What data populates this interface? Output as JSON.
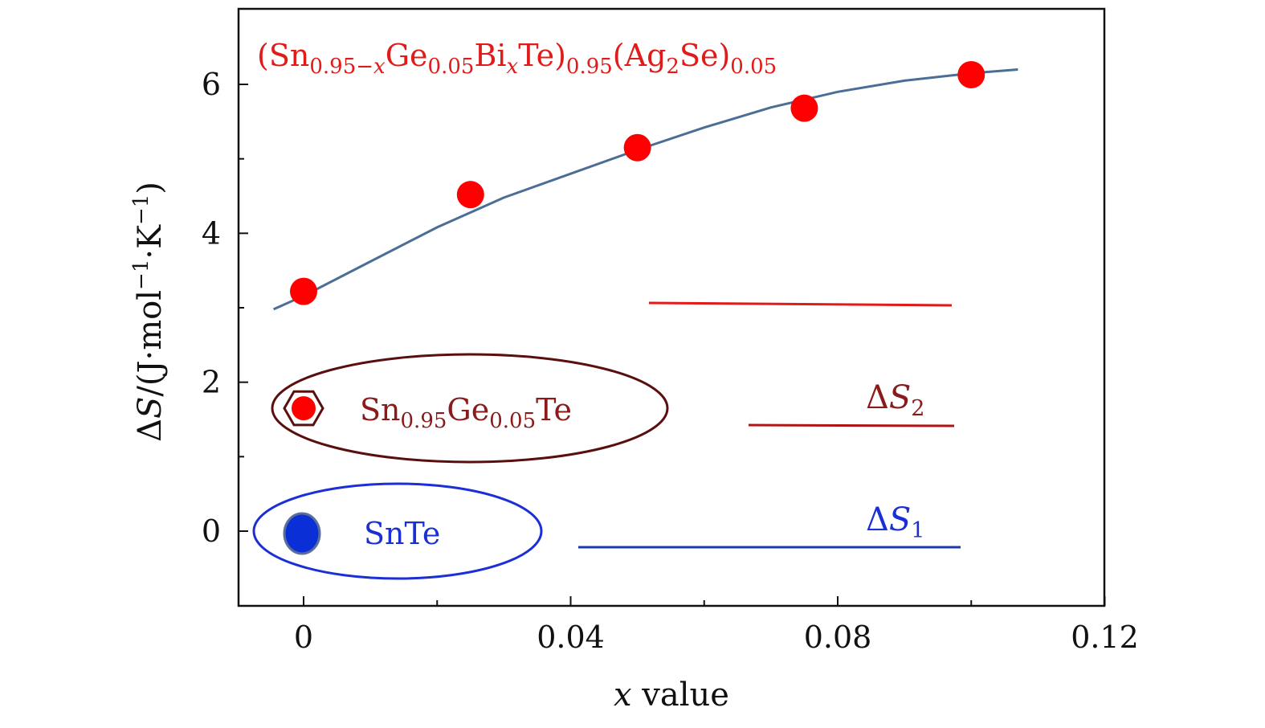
{
  "chart_data": {
    "type": "scatter",
    "title": "",
    "xlabel": {
      "italic": "x",
      "rest": " value"
    },
    "ylabel": {
      "delta": "Δ",
      "S": "S",
      "unit": "/(J·mol",
      "exp1": "−1",
      "mid": "·K",
      "exp2": "−1",
      "close": ")"
    },
    "xlim": [
      -0.005,
      0.12
    ],
    "ylim": [
      -1,
      7
    ],
    "x_ticks": [
      0,
      0.04,
      0.08,
      0.12
    ],
    "x_tick_labels": [
      "0",
      "0.04",
      "0.08",
      "0.12"
    ],
    "y_ticks": [
      0,
      2,
      4,
      6
    ],
    "y_tick_labels": [
      "0",
      "2",
      "4",
      "6"
    ],
    "series": [
      {
        "name": "(Sn0.95−xGe0.05BixTe)0.95(Ag2Se)0.05",
        "color": "#ff0000",
        "marker": "circle",
        "x": [
          0,
          0.025,
          0.05,
          0.075,
          0.1
        ],
        "y": [
          3.22,
          4.52,
          5.15,
          5.68,
          6.13
        ]
      },
      {
        "name": "Sn0.95Ge0.05Te",
        "color": "#ff0000",
        "marker": "circle-hexagon",
        "x": [
          0
        ],
        "y": [
          1.65
        ]
      },
      {
        "name": "SnTe",
        "color": "#0a2fd6",
        "marker": "ellipse",
        "x": [
          0
        ],
        "y": [
          0
        ]
      }
    ],
    "fit_curve": {
      "color": "#4a6e96",
      "x": [
        -0.0045,
        0.0,
        0.01,
        0.02,
        0.03,
        0.04,
        0.05,
        0.06,
        0.07,
        0.08,
        0.09,
        0.1,
        0.107
      ],
      "y": [
        2.98,
        3.16,
        3.62,
        4.08,
        4.48,
        4.8,
        5.12,
        5.42,
        5.69,
        5.9,
        6.05,
        6.15,
        6.2
      ]
    },
    "annotations": {
      "formula_label": {
        "color": "#e11a1a",
        "parts": [
          {
            "t": "(Sn",
            "s": "n"
          },
          {
            "t": "0.95−",
            "s": "sub"
          },
          {
            "t": "x",
            "s": "sub-italic"
          },
          {
            "t": "Ge",
            "s": "n"
          },
          {
            "t": "0.05",
            "s": "sub"
          },
          {
            "t": "Bi",
            "s": "n"
          },
          {
            "t": "x",
            "s": "sub-italic"
          },
          {
            "t": "Te)",
            "s": "n"
          },
          {
            "t": "0.95",
            "s": "sub"
          },
          {
            "t": "(Ag",
            "s": "n"
          },
          {
            "t": "2",
            "s": "sub"
          },
          {
            "t": "Se)",
            "s": "n"
          },
          {
            "t": "0.05",
            "s": "sub"
          }
        ]
      },
      "ge_label": {
        "color": "#8b1a1a",
        "parts": [
          {
            "t": "Sn",
            "s": "n"
          },
          {
            "t": "0.95",
            "s": "sub"
          },
          {
            "t": "Ge",
            "s": "n"
          },
          {
            "t": "0.05",
            "s": "sub"
          },
          {
            "t": "Te",
            "s": "n"
          }
        ]
      },
      "snte_label": {
        "text": "SnTe",
        "color": "#1a2fd6"
      },
      "ds2_label": {
        "delta": "Δ",
        "S": "S",
        "sub": "2",
        "color": "#8b1a1a"
      },
      "ds1_label": {
        "delta": "Δ",
        "S": "S",
        "sub": "1",
        "color": "#1a2fd6"
      },
      "ge_ellipse_color": "#5a0f0f",
      "snte_ellipse_color": "#1a2fd6",
      "top_level_line_color": "#e11a1a",
      "mid_level_line_color": "#b01515",
      "bottom_level_line_color": "#1a3aae"
    }
  }
}
